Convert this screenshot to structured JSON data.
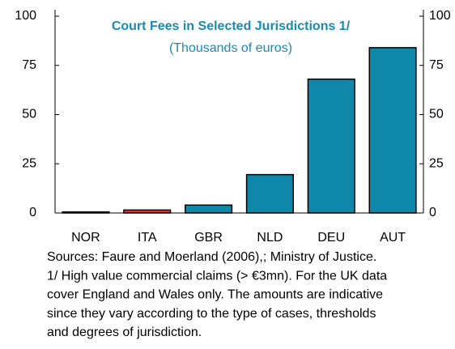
{
  "chart_data": {
    "type": "bar",
    "title": "Court Fees in Selected Jurisdictions 1/",
    "subtitle": "(Thousands of euros)",
    "categories": [
      "NOR",
      "ITA",
      "GBR",
      "NLD",
      "DEU",
      "AUT"
    ],
    "values": [
      0.5,
      1.5,
      4,
      19.5,
      68,
      84
    ],
    "color": "#0e87a8",
    "colors": [
      "#0e87a8",
      "#e8343a",
      "#0e87a8",
      "#0e87a8",
      "#0e87a8",
      "#0e87a8"
    ],
    "ylim": [
      0,
      100
    ],
    "yticks": [
      0,
      25,
      50,
      75,
      100
    ],
    "y2lim": [
      0,
      100
    ],
    "y2ticks": [
      0,
      25,
      50,
      75,
      100
    ],
    "grid": false,
    "notes": [
      "Sources: Faure and Moerland (2006),; Ministry of Justice.",
      "1/ High value commercial claims (> €3mn). For the UK data",
      "cover England and Wales only. The amounts are indicative",
      "since they vary according to the type of cases, thresholds",
      "and degrees of jurisdiction."
    ]
  }
}
